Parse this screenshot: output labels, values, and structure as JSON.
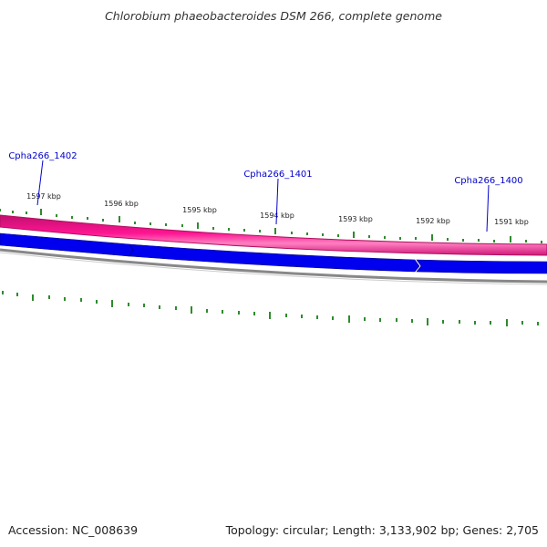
{
  "title": "Chlorobium phaeobacteroides DSM 266, complete genome",
  "footer": {
    "accession": "Accession: NC_008639",
    "summary": "Topology: circular; Length: 3,133,902 bp; Genes: 2,705"
  },
  "colors": {
    "gc_band": "#ff1493",
    "gene_forward": "#0000ee",
    "backbone": "#888888",
    "tick": "#2e8b2e",
    "gene_label": "#0000cc"
  },
  "scale_labels": [
    "1597 kbp",
    "1596 kbp",
    "1595 kbp",
    "1594 kbp",
    "1593 kbp",
    "1592 kbp",
    "1591 kbp"
  ],
  "genes": [
    {
      "label": "Cpha266_1402"
    },
    {
      "label": "Cpha266_1401"
    },
    {
      "label": "Cpha266_1400"
    }
  ]
}
